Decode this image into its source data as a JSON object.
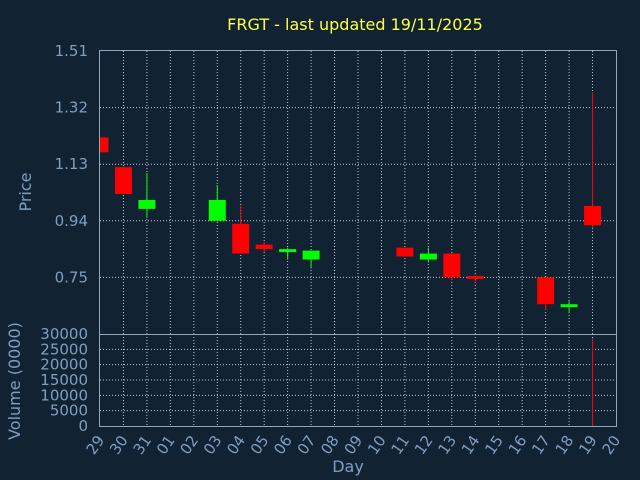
{
  "chart_data": {
    "type": "candlestick",
    "title": "FRGT - last updated 19/11/2025",
    "price_panel": {
      "ylabel": "Price",
      "yticks": [
        "1.51",
        "1.32",
        "1.13",
        "0.94",
        "0.75"
      ],
      "ylim": [
        0.56,
        1.51
      ]
    },
    "volume_panel": {
      "ylabel": "Volume (0000)",
      "yticks": [
        "30000",
        "25000",
        "20000",
        "15000",
        "10000",
        "5000",
        "0"
      ],
      "ylim": [
        0,
        30000
      ]
    },
    "xlabel": "Day",
    "x_ticks": [
      "29",
      "30",
      "31",
      "01",
      "02",
      "03",
      "04",
      "05",
      "06",
      "07",
      "08",
      "09",
      "10",
      "11",
      "12",
      "13",
      "14",
      "15",
      "16",
      "17",
      "18",
      "19",
      "20"
    ],
    "candles": [
      {
        "day": "29",
        "open": 1.22,
        "close": 1.17,
        "high": 1.22,
        "low": 1.17,
        "volume": 0
      },
      {
        "day": "30",
        "open": 1.12,
        "close": 1.03,
        "high": 1.12,
        "low": 1.03,
        "volume": 0
      },
      {
        "day": "31",
        "open": 0.98,
        "close": 1.01,
        "high": 1.1,
        "low": 0.95,
        "volume": 0
      },
      {
        "day": "03",
        "open": 0.94,
        "close": 1.01,
        "high": 1.06,
        "low": 0.94,
        "volume": 0
      },
      {
        "day": "04",
        "open": 0.93,
        "close": 0.83,
        "high": 0.99,
        "low": 0.83,
        "volume": 0
      },
      {
        "day": "05",
        "open": 0.86,
        "close": 0.845,
        "high": 0.87,
        "low": 0.835,
        "volume": 0
      },
      {
        "day": "06",
        "open": 0.835,
        "close": 0.845,
        "high": 0.85,
        "low": 0.81,
        "volume": 0
      },
      {
        "day": "07",
        "open": 0.81,
        "close": 0.84,
        "high": 0.84,
        "low": 0.78,
        "volume": 0
      },
      {
        "day": "11",
        "open": 0.85,
        "close": 0.82,
        "high": 0.85,
        "low": 0.82,
        "volume": 0
      },
      {
        "day": "12",
        "open": 0.81,
        "close": 0.83,
        "high": 0.85,
        "low": 0.8,
        "volume": 0
      },
      {
        "day": "13",
        "open": 0.83,
        "close": 0.75,
        "high": 0.83,
        "low": 0.74,
        "volume": 0
      },
      {
        "day": "14",
        "open": 0.755,
        "close": 0.75,
        "high": 0.755,
        "low": 0.73,
        "volume": 0
      },
      {
        "day": "17",
        "open": 0.75,
        "close": 0.66,
        "high": 0.75,
        "low": 0.64,
        "volume": 0
      },
      {
        "day": "18",
        "open": 0.65,
        "close": 0.66,
        "high": 0.67,
        "low": 0.63,
        "volume": 0
      },
      {
        "day": "19",
        "open": 0.99,
        "close": 0.925,
        "high": 1.37,
        "low": 0.915,
        "volume": 28500
      }
    ],
    "colors": {
      "background": "#112233",
      "up": "#00ff00",
      "down": "#ff0000",
      "title": "#ffff44",
      "axis_text": "#7f9fbf"
    },
    "grid": true
  }
}
